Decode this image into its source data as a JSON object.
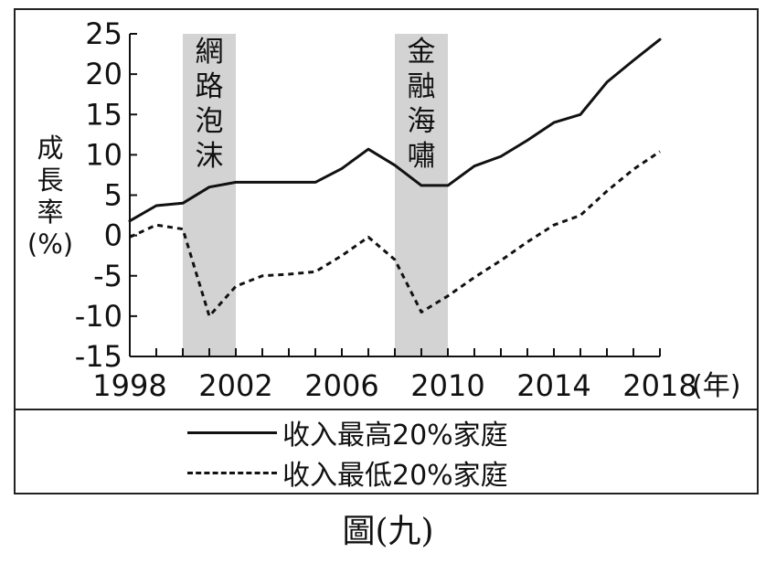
{
  "chart_data": {
    "type": "line",
    "ylabel": "成長率(%)",
    "ylabel_chars": [
      "成",
      "長",
      "率",
      "(%)"
    ],
    "xunit": "(年)",
    "ylim": [
      -15,
      25
    ],
    "yticks": [
      25,
      20,
      15,
      10,
      5,
      0,
      -5,
      -10,
      -15
    ],
    "xlim": [
      1998,
      2018
    ],
    "xtick_labels": [
      1998,
      2002,
      2006,
      2010,
      2014,
      2018
    ],
    "x": [
      1998,
      1999,
      2000,
      2001,
      2002,
      2003,
      2004,
      2005,
      2006,
      2007,
      2008,
      2009,
      2010,
      2011,
      2012,
      2013,
      2014,
      2015,
      2016,
      2017,
      2018
    ],
    "series": [
      {
        "name": "收入最高20%家庭",
        "style": "solid",
        "color": "#111111",
        "values": [
          1.8,
          3.7,
          4.0,
          6.0,
          6.6,
          6.6,
          6.6,
          6.6,
          8.3,
          10.7,
          8.7,
          6.2,
          6.2,
          8.6,
          9.8,
          11.8,
          14.0,
          15.0,
          19.0,
          21.7,
          24.3
        ]
      },
      {
        "name": "收入最低20%家庭",
        "style": "dashed",
        "color": "#111111",
        "values": [
          -0.2,
          1.3,
          0.8,
          -10.0,
          -6.3,
          -5.0,
          -4.8,
          -4.5,
          -2.5,
          -0.2,
          -3.0,
          -9.5,
          -7.5,
          -5.2,
          -3.1,
          -0.8,
          1.3,
          2.5,
          5.5,
          8.2,
          10.4
        ]
      }
    ],
    "shaded_regions": [
      {
        "label": "網路泡沫",
        "label_chars": [
          "網",
          "路",
          "泡",
          "沫"
        ],
        "x_start": 2000,
        "x_end": 2002,
        "color": "#d3d3d3"
      },
      {
        "label": "金融海嘯",
        "label_chars": [
          "金",
          "融",
          "海",
          "嘯"
        ],
        "x_start": 2008,
        "x_end": 2010,
        "color": "#d3d3d3"
      }
    ],
    "legend_position": "bottom",
    "grid": false
  },
  "figure": {
    "caption": "圖(九)"
  }
}
